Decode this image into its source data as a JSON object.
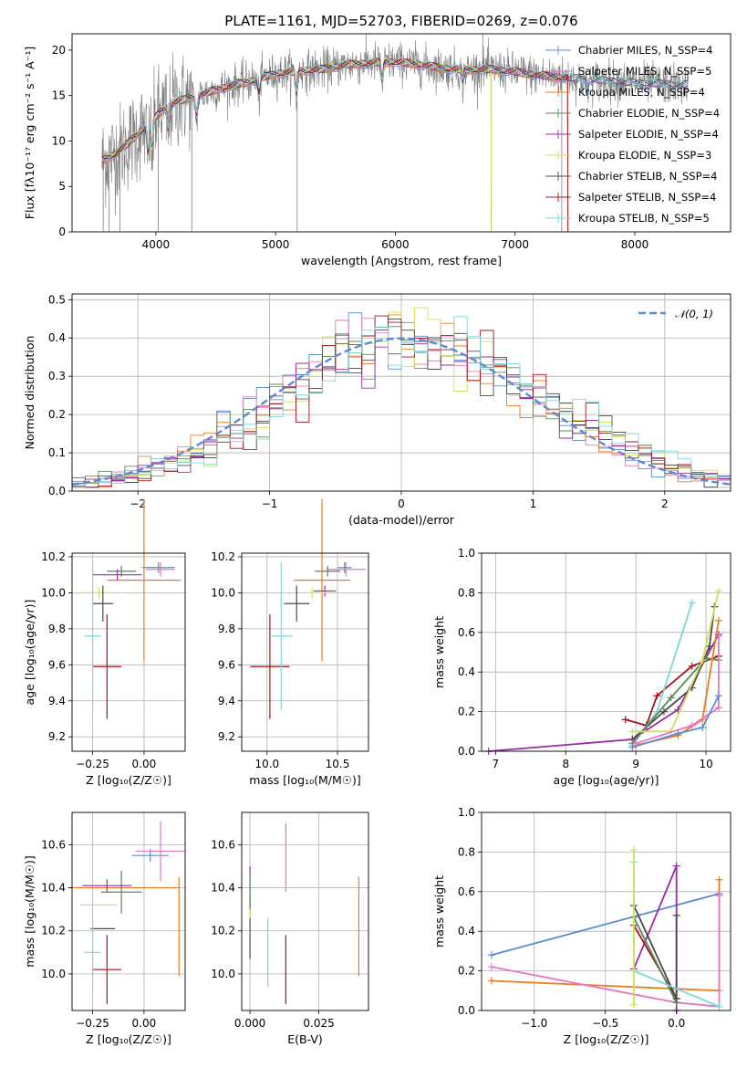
{
  "chart_data": [
    {
      "id": "spectrum",
      "type": "line",
      "title": "PLATE=1161, MJD=52703, FIBERID=0269, z=0.076",
      "xlabel": "wavelength [Angstrom, rest frame]",
      "ylabel": "Flux [fλ10⁻¹⁷ erg cm⁻² s⁻¹ A⁻¹]",
      "xlim": [
        3300,
        8800
      ],
      "ylim": [
        0,
        21.8
      ],
      "xticks": [
        4000,
        5000,
        6000,
        7000,
        8000
      ],
      "yticks": [
        0,
        5,
        10,
        15,
        20
      ],
      "legend": [
        "Chabrier MILES, N_SSP=4",
        "Salpeter MILES, N_SSP=5",
        "Kroupa MILES, N_SSP=4",
        "Chabrier ELODIE, N_SSP=4",
        "Salpeter ELODIE, N_SSP=4",
        "Kroupa ELODIE, N_SSP=3",
        "Chabrier STELIB, N_SSP=4",
        "Salpeter STELIB, N_SSP=4",
        "Kroupa STELIB, N_SSP=5"
      ],
      "legend_loc": "upper-right",
      "data_color": "#7f7f7f",
      "model_continuum": [
        [
          3550,
          7.8
        ],
        [
          3650,
          8.5
        ],
        [
          3750,
          9.5
        ],
        [
          3850,
          10.8
        ],
        [
          3950,
          12.0
        ],
        [
          4050,
          13.3
        ],
        [
          4150,
          14.2
        ],
        [
          4300,
          14.8
        ],
        [
          4450,
          15.4
        ],
        [
          4600,
          16.0
        ],
        [
          4800,
          16.6
        ],
        [
          5000,
          17.4
        ],
        [
          5200,
          17.7
        ],
        [
          5400,
          17.9
        ],
        [
          5600,
          18.4
        ],
        [
          5800,
          18.6
        ],
        [
          6000,
          18.7
        ],
        [
          6200,
          18.4
        ],
        [
          6400,
          18.0
        ],
        [
          6600,
          17.8
        ],
        [
          6800,
          17.9
        ],
        [
          7000,
          17.6
        ],
        [
          7200,
          17.2
        ],
        [
          7400,
          17.0
        ],
        [
          7600,
          16.8
        ],
        [
          7800,
          16.6
        ],
        [
          8000,
          16.4
        ],
        [
          8200,
          16.3
        ],
        [
          8400,
          16.2
        ]
      ]
    },
    {
      "id": "residuals",
      "type": "line",
      "xlabel": "(data-model)/error",
      "ylabel": "Normed distribution",
      "xlim": [
        -2.5,
        2.5
      ],
      "ylim": [
        0,
        0.515
      ],
      "xticks": [
        -2,
        -1,
        0,
        1,
        2
      ],
      "yticks": [
        0.0,
        0.1,
        0.2,
        0.3,
        0.4,
        0.5
      ],
      "xtick_labels": [
        "−2",
        "−1",
        "0",
        "1",
        "2"
      ],
      "ytick_labels": [
        "0.0",
        "0.1",
        "0.2",
        "0.3",
        "0.4",
        "0.5"
      ],
      "gaussian_label": "𝒩(0, 1)",
      "gaussian_color": "#5b8bd8",
      "bin_width": 0.1
    },
    {
      "id": "age_vs_Z",
      "type": "scatter",
      "xlabel": "Z [log₁₀(Z/Z☉)]",
      "ylabel": "age  [log₁₀(age/yr)]",
      "xlim": [
        -0.35,
        0.2
      ],
      "ylim": [
        9.12,
        10.22
      ],
      "xticks": [
        -0.25,
        0.0
      ],
      "xtick_labels": [
        "−0.25",
        "0.00"
      ],
      "yticks": [
        9.2,
        9.4,
        9.6,
        9.8,
        10.0,
        10.2
      ],
      "ytick_labels": [
        "9.2",
        "9.4",
        "9.6",
        "9.8",
        "10.0",
        "10.2"
      ],
      "points": [
        {
          "x": 0.07,
          "y": 10.14,
          "xerr": 0.08,
          "yerr": 0.03,
          "color": "#5b8bd8"
        },
        {
          "x": 0.08,
          "y": 10.13,
          "xerr": 0.07,
          "yerr": 0.04,
          "color": "#e377c2"
        },
        {
          "x": 0.0,
          "y": 10.07,
          "xerr": 0.18,
          "yerr": 0.45,
          "color": "#e87d24"
        },
        {
          "x": -0.11,
          "y": 10.12,
          "xerr": 0.07,
          "yerr": 0.03,
          "color": "#588a5a"
        },
        {
          "x": -0.13,
          "y": 10.1,
          "xerr": 0.12,
          "yerr": 0.03,
          "color": "#9c2aa8"
        },
        {
          "x": -0.22,
          "y": 10.0,
          "xerr": 0.1,
          "yerr": 0.03,
          "color": "#cfe05c"
        },
        {
          "x": -0.2,
          "y": 9.94,
          "xerr": 0.05,
          "yerr": 0.1,
          "color": "#4a4a4a"
        },
        {
          "x": -0.18,
          "y": 9.59,
          "xerr": 0.07,
          "yerr": 0.29,
          "color": "#a0151c"
        },
        {
          "x": -0.25,
          "y": 9.76,
          "xerr": 0.04,
          "yerr": 0.41,
          "color": "#7ed7d8"
        }
      ]
    },
    {
      "id": "age_vs_mass",
      "type": "scatter",
      "xlabel": "mass [log₁₀(M/M☉)]",
      "ylabel": "",
      "xlim": [
        9.82,
        10.72
      ],
      "ylim": [
        9.12,
        10.22
      ],
      "xticks": [
        10.0,
        10.5
      ],
      "xtick_labels": [
        "10.0",
        "10.5"
      ],
      "yticks": [
        9.2,
        9.4,
        9.6,
        9.8,
        10.0,
        10.2
      ],
      "ytick_labels": [
        "9.2",
        "9.4",
        "9.6",
        "9.8",
        "10.0",
        "10.2"
      ],
      "points": [
        {
          "x": 10.55,
          "y": 10.14,
          "xerr": 0.05,
          "yerr": 0.03,
          "color": "#5b8bd8"
        },
        {
          "x": 10.56,
          "y": 10.13,
          "xerr": 0.14,
          "yerr": 0.04,
          "color": "#e377c2"
        },
        {
          "x": 10.39,
          "y": 10.07,
          "xerr": 0.2,
          "yerr": 0.45,
          "color": "#e87d24"
        },
        {
          "x": 10.43,
          "y": 10.12,
          "xerr": 0.09,
          "yerr": 0.03,
          "color": "#588a5a"
        },
        {
          "x": 10.41,
          "y": 10.01,
          "xerr": 0.08,
          "yerr": 0.03,
          "color": "#9c2aa8"
        },
        {
          "x": 10.32,
          "y": 10.0,
          "xerr": 0.1,
          "yerr": 0.03,
          "color": "#cfe05c"
        },
        {
          "x": 10.21,
          "y": 9.94,
          "xerr": 0.09,
          "yerr": 0.1,
          "color": "#4a4a4a"
        },
        {
          "x": 10.02,
          "y": 9.59,
          "xerr": 0.14,
          "yerr": 0.29,
          "color": "#a0151c"
        },
        {
          "x": 10.1,
          "y": 9.76,
          "xerr": 0.08,
          "yerr": 0.41,
          "color": "#7ed7d8"
        }
      ]
    },
    {
      "id": "massweight_vs_age",
      "type": "line",
      "xlabel": "age  [log₁₀(age/yr)]",
      "ylabel": "mass weight",
      "xlim": [
        6.8,
        10.35
      ],
      "ylim": [
        0,
        1.0
      ],
      "xticks": [
        7,
        8,
        9,
        10
      ],
      "xtick_labels": [
        "7",
        "8",
        "9",
        "10"
      ],
      "yticks": [
        0.0,
        0.2,
        0.4,
        0.6,
        0.8,
        1.0
      ],
      "ytick_labels": [
        "0.0",
        "0.2",
        "0.4",
        "0.6",
        "0.8",
        "1.0"
      ],
      "series": [
        {
          "color": "#9c2aa8",
          "points": [
            [
              6.9,
              0.0
            ],
            [
              8.95,
              0.06
            ],
            [
              9.6,
              0.21
            ],
            [
              10.18,
              0.59
            ]
          ]
        },
        {
          "color": "#a0151c",
          "points": [
            [
              8.85,
              0.16
            ],
            [
              9.15,
              0.13
            ],
            [
              9.3,
              0.28
            ],
            [
              9.8,
              0.43
            ],
            [
              10.18,
              0.48
            ]
          ]
        },
        {
          "color": "#7ed7d8",
          "points": [
            [
              8.95,
              0.03
            ],
            [
              9.3,
              0.2
            ],
            [
              9.8,
              0.75
            ]
          ]
        },
        {
          "color": "#4a4a4a",
          "points": [
            [
              8.95,
              0.06
            ],
            [
              9.4,
              0.2
            ],
            [
              9.8,
              0.32
            ],
            [
              10.05,
              0.53
            ],
            [
              10.12,
              0.73
            ]
          ]
        },
        {
          "color": "#588a5a",
          "points": [
            [
              8.95,
              0.04
            ],
            [
              9.5,
              0.27
            ],
            [
              10.0,
              0.47
            ],
            [
              10.18,
              0.46
            ]
          ]
        },
        {
          "color": "#cfe05c",
          "points": [
            [
              8.95,
              0.1
            ],
            [
              9.5,
              0.1
            ],
            [
              9.95,
              0.46
            ],
            [
              10.18,
              0.81
            ]
          ]
        },
        {
          "color": "#e87d24",
          "points": [
            [
              9.0,
              0.03
            ],
            [
              9.6,
              0.08
            ],
            [
              9.95,
              0.16
            ],
            [
              10.18,
              0.66
            ]
          ]
        },
        {
          "color": "#e377c2",
          "points": [
            [
              9.0,
              0.04
            ],
            [
              9.8,
              0.13
            ],
            [
              10.18,
              0.22
            ],
            [
              10.18,
              0.58
            ]
          ]
        },
        {
          "color": "#5b8bd8",
          "points": [
            [
              8.95,
              0.02
            ],
            [
              9.6,
              0.09
            ],
            [
              9.95,
              0.12
            ],
            [
              10.18,
              0.28
            ]
          ]
        }
      ]
    },
    {
      "id": "mass_vs_Z",
      "type": "scatter",
      "xlabel": "Z [log₁₀(Z/Z☉)]",
      "ylabel": "mass [log₁₀(M/M☉)]",
      "xlim": [
        -0.35,
        0.2
      ],
      "ylim": [
        9.83,
        10.75
      ],
      "xticks": [
        -0.25,
        0.0
      ],
      "xtick_labels": [
        "−0.25",
        "0.00"
      ],
      "yticks": [
        10.0,
        10.2,
        10.4,
        10.6
      ],
      "ytick_labels": [
        "10.0",
        "10.2",
        "10.4",
        "10.6"
      ],
      "points": [
        {
          "x": 0.03,
          "y": 10.55,
          "xerr": 0.09,
          "yerr": 0.03,
          "color": "#5b8bd8"
        },
        {
          "x": 0.08,
          "y": 10.57,
          "xerr": 0.12,
          "yerr": 0.14,
          "color": "#e377c2"
        },
        {
          "x": -0.1,
          "y": 10.4,
          "xerr": 0.27,
          "yerr": 0.0,
          "color": "#e87d24"
        },
        {
          "x": 0.17,
          "y": 10.22,
          "xerr": 0.0,
          "yerr": 0.23,
          "color": "#e87d24"
        },
        {
          "x": -0.11,
          "y": 10.38,
          "xerr": 0.1,
          "yerr": 0.1,
          "color": "#588a5a"
        },
        {
          "x": -0.18,
          "y": 10.41,
          "xerr": 0.12,
          "yerr": 0.03,
          "color": "#9c2aa8"
        },
        {
          "x": -0.22,
          "y": 10.32,
          "xerr": 0.09,
          "yerr": 0.0,
          "color": "#cfe05c"
        },
        {
          "x": -0.2,
          "y": 10.21,
          "xerr": 0.06,
          "yerr": 0.0,
          "color": "#4a4a4a"
        },
        {
          "x": -0.18,
          "y": 10.02,
          "xerr": 0.07,
          "yerr": 0.16,
          "color": "#a0151c"
        },
        {
          "x": -0.25,
          "y": 10.1,
          "xerr": 0.04,
          "yerr": 0.16,
          "color": "#7ed7d8"
        }
      ]
    },
    {
      "id": "mass_vs_EBV",
      "type": "scatter",
      "xlabel": "E(B-V)",
      "ylabel": "",
      "xlim": [
        -0.003,
        0.043
      ],
      "ylim": [
        9.83,
        10.75
      ],
      "xticks": [
        0.0,
        0.025
      ],
      "xtick_labels": [
        "0.000",
        "0.025"
      ],
      "yticks": [
        10.0,
        10.2,
        10.4,
        10.6
      ],
      "ytick_labels": [
        "10.0",
        "10.2",
        "10.4",
        "10.6"
      ],
      "points": [
        {
          "x": 0.0,
          "y": 10.21,
          "xerr": 0.0,
          "yerr": 0.14,
          "color": "#4a4a4a"
        },
        {
          "x": 0.0,
          "y": 10.41,
          "xerr": 0.0,
          "yerr": 0.09,
          "color": "#9c2aa8"
        },
        {
          "x": 0.0,
          "y": 10.32,
          "xerr": 0.0,
          "yerr": 0.06,
          "color": "#cfe05c"
        },
        {
          "x": 0.0,
          "y": 10.38,
          "xerr": 0.0,
          "yerr": 0.08,
          "color": "#588a5a"
        },
        {
          "x": 0.0065,
          "y": 10.1,
          "xerr": 0.0,
          "yerr": 0.16,
          "color": "#7ed7d8"
        },
        {
          "x": 0.013,
          "y": 10.54,
          "xerr": 0.0,
          "yerr": 0.16,
          "color": "#e377c2"
        },
        {
          "x": 0.013,
          "y": 10.02,
          "xerr": 0.0,
          "yerr": 0.16,
          "color": "#a0151c"
        },
        {
          "x": 0.0395,
          "y": 10.22,
          "xerr": 0.0,
          "yerr": 0.23,
          "color": "#e87d24"
        }
      ]
    },
    {
      "id": "massweight_vs_Z",
      "type": "line",
      "xlabel": "Z [log₁₀(Z/Z☉)]",
      "ylabel": "mass weight",
      "xlim": [
        -1.37,
        0.38
      ],
      "ylim": [
        0,
        1.0
      ],
      "xticks": [
        -1.0,
        -0.5,
        0.0
      ],
      "xtick_labels": [
        "−1.0",
        "−0.5",
        "0.0"
      ],
      "yticks": [
        0.0,
        0.2,
        0.4,
        0.6,
        0.8,
        1.0
      ],
      "ytick_labels": [
        "0.0",
        "0.2",
        "0.4",
        "0.6",
        "0.8",
        "1.0"
      ],
      "series": [
        {
          "color": "#5b8bd8",
          "points": [
            [
              -1.3,
              0.28
            ],
            [
              0.3,
              0.59
            ]
          ]
        },
        {
          "color": "#e87d24",
          "points": [
            [
              -1.3,
              0.15
            ],
            [
              0.3,
              0.1
            ],
            [
              0.3,
              0.66
            ]
          ]
        },
        {
          "color": "#e377c2",
          "points": [
            [
              -1.3,
              0.22
            ],
            [
              0.0,
              0.04
            ],
            [
              0.3,
              0.02
            ],
            [
              0.3,
              0.58
            ]
          ]
        },
        {
          "color": "#9c2aa8",
          "points": [
            [
              -0.3,
              0.21
            ],
            [
              0.0,
              0.73
            ],
            [
              0.0,
              0.0
            ]
          ]
        },
        {
          "color": "#a0151c",
          "points": [
            [
              -0.3,
              0.43
            ],
            [
              0.0,
              0.06
            ]
          ]
        },
        {
          "color": "#588a5a",
          "points": [
            [
              -0.3,
              0.47
            ],
            [
              0.0,
              0.04
            ]
          ]
        },
        {
          "color": "#4a4a4a",
          "points": [
            [
              -0.3,
              0.53
            ],
            [
              0.0,
              0.06
            ],
            [
              0.0,
              0.48
            ]
          ]
        },
        {
          "color": "#7ed7d8",
          "points": [
            [
              -0.3,
              0.75
            ],
            [
              -0.3,
              0.2
            ],
            [
              0.3,
              0.02
            ]
          ]
        },
        {
          "color": "#cfe05c",
          "points": [
            [
              -0.3,
              0.81
            ],
            [
              -0.3,
              0.03
            ]
          ]
        }
      ]
    }
  ],
  "spectrum_legend_colors": [
    "#5b8bd8",
    "#e377c2",
    "#e87d24",
    "#588a5a",
    "#9c2aa8",
    "#cfe05c",
    "#4a4a4a",
    "#a0151c",
    "#7ed7d8"
  ],
  "model_colors": [
    "#5b8bd8",
    "#e377c2",
    "#e87d24",
    "#588a5a",
    "#9c2aa8",
    "#cfe05c",
    "#4a4a4a",
    "#a0151c",
    "#7ed7d8"
  ]
}
